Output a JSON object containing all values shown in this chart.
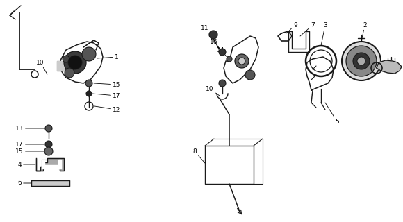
{
  "bg_color": "#ffffff",
  "lc": "#1a1a1a",
  "fs": 6.5,
  "figsize": [
    5.8,
    3.2
  ],
  "dpi": 100
}
